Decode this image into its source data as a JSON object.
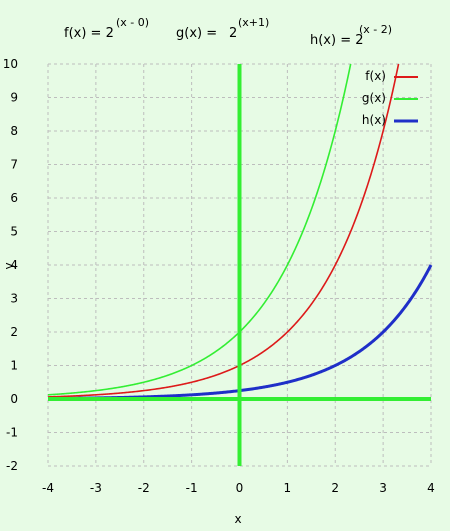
{
  "equations": {
    "f": {
      "base": "f(x) =  2",
      "sup": "(x - 0)"
    },
    "g": {
      "base": "g(x) =",
      "base2": "2",
      "sup": "(x+1)"
    },
    "h": {
      "base": "h(x) = 2",
      "sup": "(x - 2)"
    }
  },
  "colors": {
    "background": "#e7fbe5",
    "grid": "#bdbdbd",
    "axes": "#33ee33",
    "f": "#dd1a1a",
    "g": "#33ee33",
    "h": "#1f2fc8"
  },
  "chart_data": {
    "type": "line",
    "title": "",
    "xlabel": "x",
    "ylabel": "y",
    "xlim": [
      -4,
      4
    ],
    "ylim": [
      -2,
      10
    ],
    "xticks": [
      "-4",
      "-3",
      "-2",
      "-1",
      "0",
      "1",
      "2",
      "3",
      "4"
    ],
    "yticks": [
      "-2",
      "-1",
      "0",
      "1",
      "2",
      "3",
      "4",
      "5",
      "6",
      "7",
      "8",
      "9",
      "10"
    ],
    "grid": true,
    "legend_position": "top-right",
    "series": [
      {
        "name": "f(x)",
        "function": "2^(x-0)",
        "x": [
          -4,
          -3,
          -2,
          -1,
          0,
          1,
          2,
          3,
          3.32
        ],
        "y": [
          0.0625,
          0.125,
          0.25,
          0.5,
          1,
          2,
          4,
          8,
          10
        ]
      },
      {
        "name": "g(x)",
        "function": "2^(x+1)",
        "x": [
          -4,
          -3,
          -2,
          -1,
          0,
          1,
          2,
          2.32
        ],
        "y": [
          0.125,
          0.25,
          0.5,
          1,
          2,
          4,
          8,
          10
        ]
      },
      {
        "name": "h(x)",
        "function": "2^(x-2)",
        "x": [
          -4,
          -3,
          -2,
          -1,
          0,
          1,
          2,
          3,
          4
        ],
        "y": [
          0.015625,
          0.03125,
          0.0625,
          0.125,
          0.25,
          0.5,
          1,
          2,
          4
        ]
      }
    ]
  }
}
